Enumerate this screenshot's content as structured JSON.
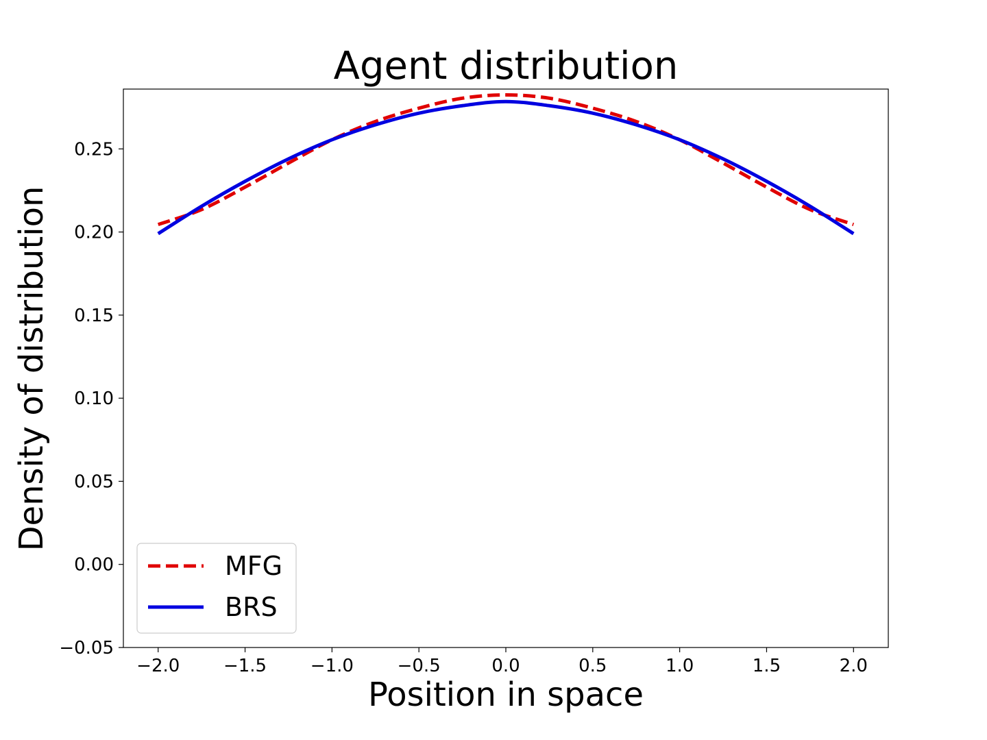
{
  "chart_data": {
    "type": "line",
    "title": "Agent distribution",
    "xlabel": "Position in space",
    "ylabel": "Density of distribution",
    "xlim": [
      -2.2,
      2.2
    ],
    "ylim": [
      -0.05,
      0.286
    ],
    "xticks": [
      -2.0,
      -1.5,
      -1.0,
      -0.5,
      0.0,
      0.5,
      1.0,
      1.5,
      2.0
    ],
    "xtick_labels": [
      "−2.0",
      "−1.5",
      "−1.0",
      "−0.5",
      "0.0",
      "0.5",
      "1.0",
      "1.5",
      "2.0"
    ],
    "yticks": [
      -0.05,
      0.0,
      0.05,
      0.1,
      0.15,
      0.2,
      0.25
    ],
    "ytick_labels": [
      "−0.05",
      "0.00",
      "0.05",
      "0.10",
      "0.15",
      "0.20",
      "0.25"
    ],
    "grid": false,
    "legend_position": "lower-left",
    "series": [
      {
        "name": "MFG",
        "color": "#e00000",
        "style": "dashed",
        "x": [
          -2.0,
          -1.75,
          -1.5,
          -1.25,
          -1.0,
          -0.75,
          -0.5,
          -0.25,
          0.0,
          0.25,
          0.5,
          0.75,
          1.0,
          1.25,
          1.5,
          1.75,
          2.0
        ],
        "y": [
          0.2045,
          0.2135,
          0.227,
          0.2415,
          0.2555,
          0.2665,
          0.2745,
          0.2805,
          0.2825,
          0.2805,
          0.2745,
          0.2665,
          0.2555,
          0.2415,
          0.227,
          0.2135,
          0.2045
        ]
      },
      {
        "name": "BRS",
        "color": "#0000e0",
        "style": "solid",
        "x": [
          -2.0,
          -1.75,
          -1.5,
          -1.25,
          -1.0,
          -0.75,
          -0.5,
          -0.25,
          0.0,
          0.25,
          0.5,
          0.75,
          1.0,
          1.25,
          1.5,
          1.75,
          2.0
        ],
        "y": [
          0.199,
          0.2155,
          0.2305,
          0.244,
          0.2555,
          0.2645,
          0.2715,
          0.276,
          0.2785,
          0.276,
          0.2715,
          0.2645,
          0.2555,
          0.244,
          0.2305,
          0.2155,
          0.199
        ]
      }
    ]
  }
}
